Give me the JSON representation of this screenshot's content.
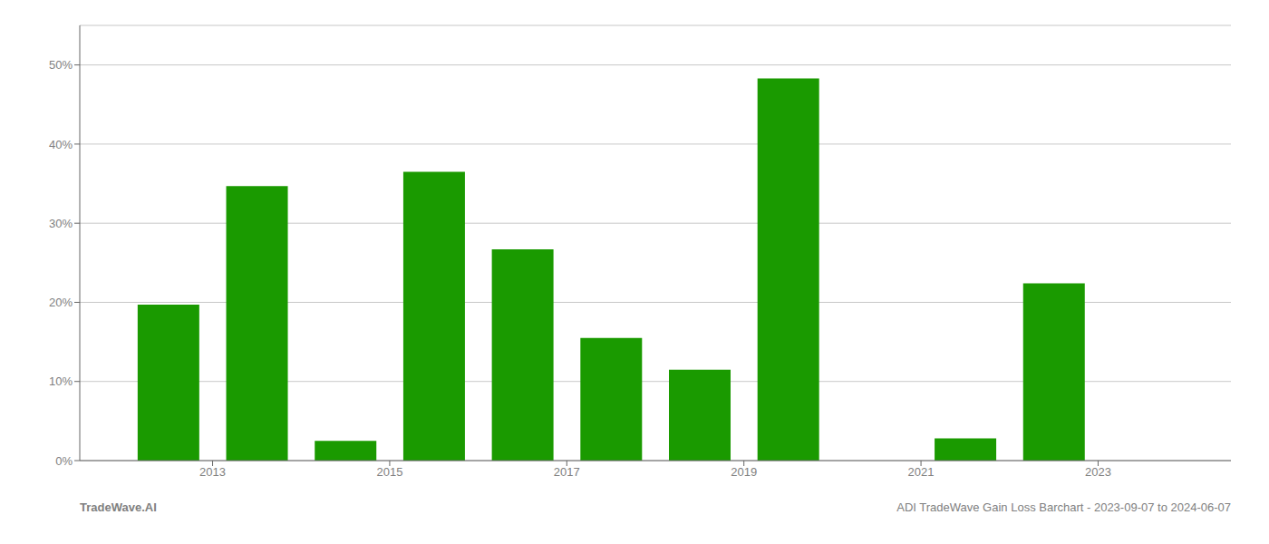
{
  "chart_data": {
    "type": "bar",
    "x": [
      2012.5,
      2013.5,
      2014.5,
      2015.5,
      2016.5,
      2017.5,
      2018.5,
      2019.5,
      2020.5,
      2021.5,
      2022.5,
      2023.5
    ],
    "values": [
      0.197,
      0.347,
      0.025,
      0.365,
      0.267,
      0.155,
      0.115,
      0.483,
      0.0,
      0.028,
      0.224,
      0.0
    ],
    "color": "#1a9a00",
    "xlim": [
      2011.5,
      2024.5
    ],
    "xticks": [
      2013,
      2015,
      2017,
      2019,
      2021,
      2023
    ],
    "ylim": [
      0.0,
      0.55
    ],
    "yticks": [
      {
        "value": 0.0,
        "label": "0%"
      },
      {
        "value": 0.1,
        "label": "10%"
      },
      {
        "value": 0.2,
        "label": "20%"
      },
      {
        "value": 0.3,
        "label": "30%"
      },
      {
        "value": 0.4,
        "label": "40%"
      },
      {
        "value": 0.5,
        "label": "50%"
      }
    ],
    "grid": true,
    "annotations": [
      "TradeWave.AI",
      "ADI TradeWave Gain Loss Barchart - 2023-09-07 to 2024-06-07"
    ]
  }
}
